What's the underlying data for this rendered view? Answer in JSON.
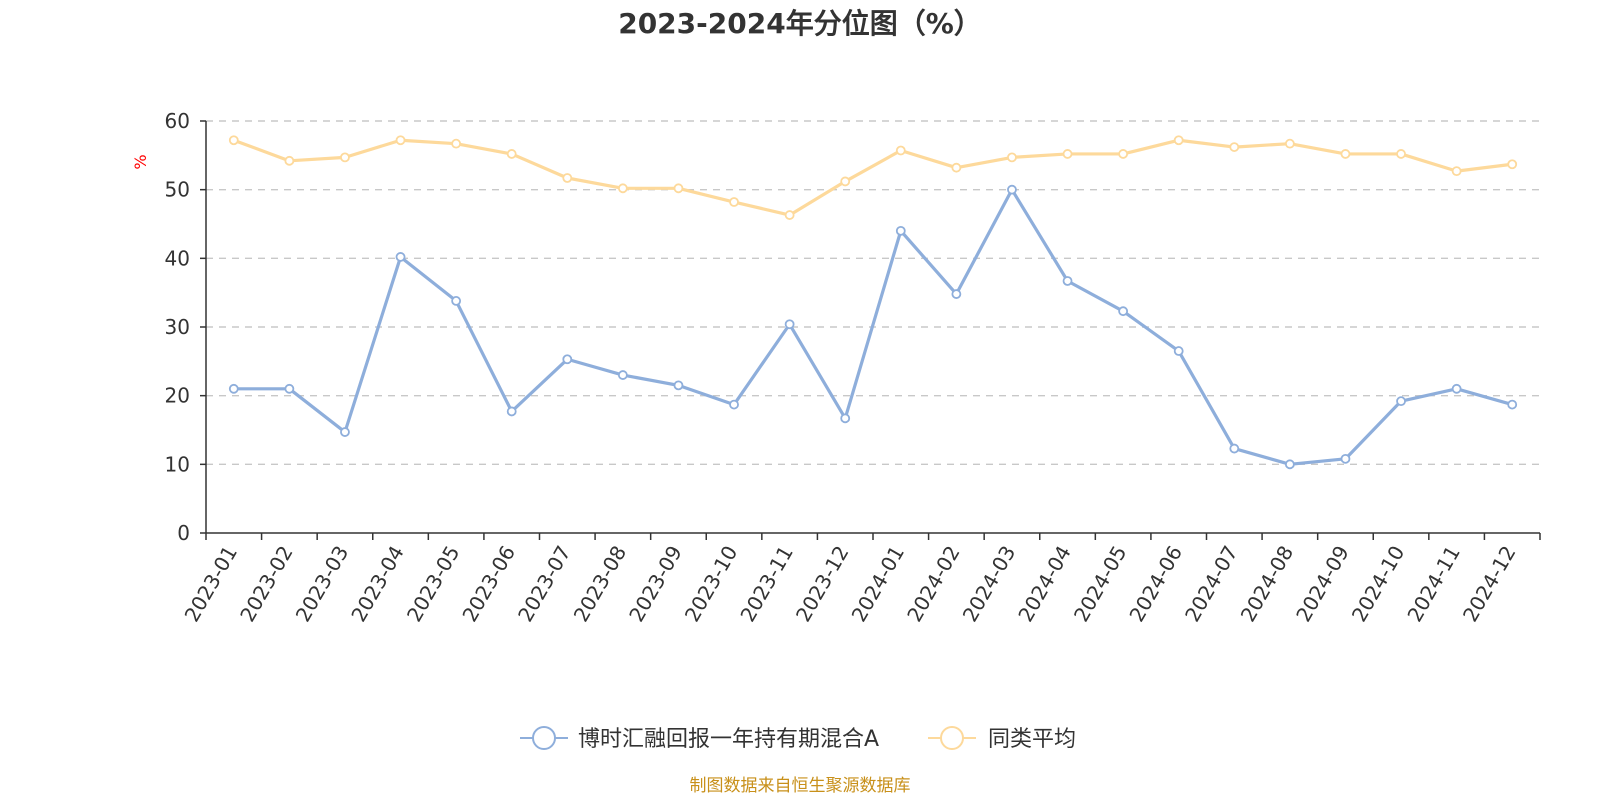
{
  "chart_data": {
    "type": "line",
    "title": "2023-2024年分位图（%）",
    "ylabel": "%",
    "ylim": [
      0,
      60
    ],
    "yticks": [
      0,
      10,
      20,
      30,
      40,
      50,
      60
    ],
    "grid": true,
    "legend_position": "bottom-center",
    "categories": [
      "2023-01",
      "2023-02",
      "2023-03",
      "2023-04",
      "2023-05",
      "2023-06",
      "2023-07",
      "2023-08",
      "2023-09",
      "2023-10",
      "2023-11",
      "2023-12",
      "2024-01",
      "2024-02",
      "2024-03",
      "2024-04",
      "2024-05",
      "2024-06",
      "2024-07",
      "2024-08",
      "2024-09",
      "2024-10",
      "2024-11",
      "2024-12"
    ],
    "series": [
      {
        "name": "博时汇融回报一年持有期混合A",
        "color": "#8eaedb",
        "values": [
          21.0,
          21.0,
          14.7,
          40.2,
          33.8,
          17.7,
          25.3,
          23.0,
          21.5,
          18.7,
          30.4,
          16.7,
          44.0,
          34.8,
          50.0,
          36.7,
          32.3,
          26.5,
          12.3,
          10.0,
          10.8,
          19.2,
          21.0,
          18.7
        ]
      },
      {
        "name": "同类平均",
        "color": "#fdd99b",
        "values": [
          57.2,
          54.2,
          54.7,
          57.2,
          56.7,
          55.2,
          51.7,
          50.2,
          50.2,
          48.2,
          46.3,
          51.2,
          55.7,
          53.2,
          54.7,
          55.2,
          55.2,
          57.2,
          56.2,
          56.7,
          55.2,
          55.2,
          52.7,
          53.7
        ]
      }
    ]
  },
  "source_note": "制图数据来自恒生聚源数据库"
}
